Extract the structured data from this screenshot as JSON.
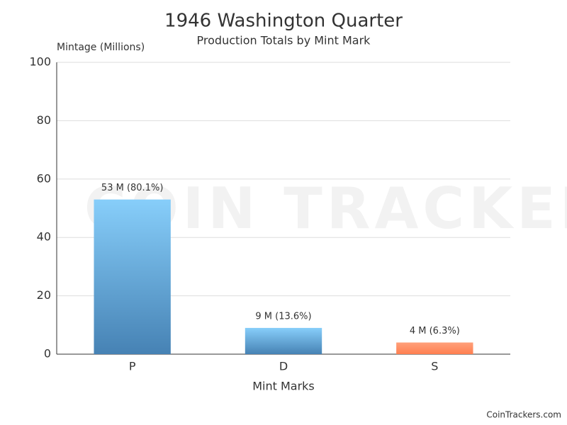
{
  "chart_data": {
    "type": "bar",
    "title": "1946 Washington Quarter",
    "subtitle": "Production Totals by Mint Mark",
    "y_label": "Mintage (Millions)",
    "x_label": "Mint Marks",
    "watermark": "COIN TRACKERS",
    "credit": "CoinTrackers.com",
    "categories": [
      "P",
      "D",
      "S"
    ],
    "values": [
      53,
      9,
      4
    ],
    "value_labels": [
      "53 M (80.1%)",
      "9 M (13.6%)",
      "4 M (6.3%)"
    ],
    "colors": [
      [
        "#87CEFA",
        "#4682B4"
      ],
      [
        "#87CEFA",
        "#4682B4"
      ],
      [
        "#FFA07A",
        "#FF7F50"
      ]
    ],
    "ylim": [
      0,
      100
    ],
    "yticks": [
      0,
      20,
      40,
      60,
      80,
      100
    ],
    "grid": true
  }
}
